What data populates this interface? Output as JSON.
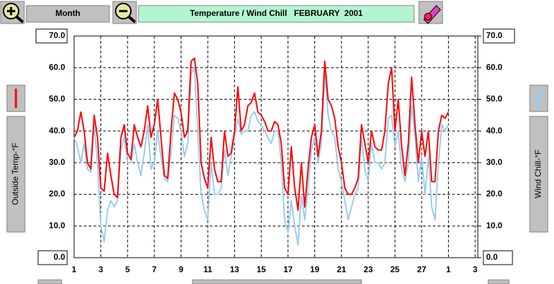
{
  "ui": {
    "zoom_label": "Month"
  },
  "chart_data": {
    "type": "line",
    "title": "Temperature / Wind Chill   FEBRUARY  2001",
    "xlim": [
      0,
      30.2
    ],
    "xticks": [
      {
        "value": 0,
        "label": "1"
      },
      {
        "value": 2,
        "label": "3"
      },
      {
        "value": 4,
        "label": "5"
      },
      {
        "value": 6,
        "label": "7"
      },
      {
        "value": 8,
        "label": "9"
      },
      {
        "value": 10,
        "label": "11"
      },
      {
        "value": 12,
        "label": "13"
      },
      {
        "value": 14,
        "label": "15"
      },
      {
        "value": 16,
        "label": "17"
      },
      {
        "value": 18,
        "label": "19"
      },
      {
        "value": 20,
        "label": "21"
      },
      {
        "value": 22,
        "label": "23"
      },
      {
        "value": 24,
        "label": "25"
      },
      {
        "value": 26,
        "label": "27"
      },
      {
        "value": 28,
        "label": "1"
      },
      {
        "value": 30,
        "label": "3"
      }
    ],
    "ylim": [
      0,
      70
    ],
    "yticks": [
      {
        "value": 0,
        "label": "0.0"
      },
      {
        "value": 10,
        "label": "10.0"
      },
      {
        "value": 20,
        "label": "20.0"
      },
      {
        "value": 30,
        "label": "30.0"
      },
      {
        "value": 40,
        "label": "40.0"
      },
      {
        "value": 50,
        "label": "50.0"
      },
      {
        "value": 60,
        "label": "60.0"
      },
      {
        "value": 70,
        "label": "70.0"
      }
    ],
    "y2lim": [
      0,
      70
    ],
    "y2ticks": [
      {
        "value": 0,
        "label": "0.0"
      },
      {
        "value": 10,
        "label": "10.0"
      },
      {
        "value": 20,
        "label": "20.0"
      },
      {
        "value": 30,
        "label": "30.0"
      },
      {
        "value": 40,
        "label": "40.0"
      },
      {
        "value": 50,
        "label": "50.0"
      },
      {
        "value": 60,
        "label": "60.0"
      },
      {
        "value": 70,
        "label": "70.0"
      }
    ],
    "grid": true,
    "x": [
      0,
      0.25,
      0.5,
      0.75,
      1,
      1.25,
      1.5,
      1.75,
      2,
      2.25,
      2.5,
      2.75,
      3,
      3.25,
      3.5,
      3.75,
      4,
      4.25,
      4.5,
      4.75,
      5,
      5.25,
      5.5,
      5.75,
      6,
      6.25,
      6.5,
      6.75,
      7,
      7.25,
      7.5,
      7.75,
      8,
      8.25,
      8.5,
      8.75,
      9,
      9.25,
      9.5,
      9.75,
      10,
      10.25,
      10.5,
      10.75,
      11,
      11.25,
      11.5,
      11.75,
      12,
      12.25,
      12.5,
      12.75,
      13,
      13.25,
      13.5,
      13.75,
      14,
      14.25,
      14.5,
      14.75,
      15,
      15.25,
      15.5,
      15.75,
      16,
      16.25,
      16.5,
      16.75,
      17,
      17.25,
      17.5,
      17.75,
      18,
      18.25,
      18.5,
      18.75,
      19,
      19.25,
      19.5,
      19.75,
      20,
      20.25,
      20.5,
      20.75,
      21,
      21.25,
      21.5,
      21.75,
      22,
      22.25,
      22.5,
      22.75,
      23,
      23.25,
      23.5,
      23.75,
      24,
      24.25,
      24.5,
      24.75,
      25,
      25.25,
      25.5,
      25.75,
      26,
      26.25,
      26.5,
      26.75,
      27,
      27.25,
      27.5,
      27.75,
      28
    ],
    "series": [
      {
        "name": "Outside Temp-°F",
        "color": "#ff0000",
        "values": [
          38,
          40,
          46,
          40,
          30,
          28,
          45,
          38,
          22,
          21,
          33,
          26,
          20,
          19,
          38,
          42,
          33,
          31,
          42,
          38,
          35,
          40,
          48,
          38,
          42,
          50,
          38,
          26,
          25,
          40,
          52,
          50,
          46,
          38,
          40,
          62,
          63,
          55,
          30,
          25,
          22,
          38,
          28,
          24,
          24,
          40,
          32,
          33,
          40,
          54,
          40,
          42,
          48,
          49,
          52,
          46,
          45,
          43,
          40,
          40,
          43,
          42,
          36,
          22,
          20,
          35,
          22,
          15,
          30,
          16,
          28,
          38,
          42,
          32,
          40,
          62,
          50,
          48,
          44,
          35,
          30,
          22,
          20,
          20,
          22,
          25,
          42,
          36,
          30,
          40,
          35,
          34,
          34,
          40,
          55,
          60,
          40,
          50,
          35,
          26,
          36,
          57,
          42,
          30,
          40,
          32,
          40,
          24,
          24,
          40,
          45,
          44,
          46
        ]
      },
      {
        "name": "Wind Chill-°F",
        "color": "#99ccf0",
        "axis": "y2",
        "values": [
          38,
          35,
          30,
          36,
          28,
          27,
          42,
          30,
          10,
          5,
          15,
          18,
          16,
          18,
          34,
          38,
          30,
          30,
          36,
          30,
          26,
          33,
          42,
          28,
          30,
          40,
          32,
          25,
          24,
          33,
          45,
          44,
          40,
          32,
          36,
          58,
          60,
          40,
          20,
          15,
          12,
          30,
          20,
          20,
          22,
          34,
          26,
          32,
          38,
          44,
          39,
          40,
          40,
          45,
          46,
          43,
          42,
          40,
          38,
          36,
          40,
          40,
          30,
          12,
          8,
          18,
          10,
          4,
          20,
          12,
          22,
          34,
          38,
          30,
          36,
          58,
          45,
          40,
          38,
          28,
          24,
          18,
          12,
          16,
          20,
          22,
          38,
          28,
          24,
          36,
          30,
          30,
          28,
          30,
          44,
          45,
          35,
          40,
          28,
          24,
          30,
          48,
          38,
          24,
          32,
          20,
          32,
          16,
          12,
          30,
          42,
          40,
          42
        ]
      }
    ]
  }
}
